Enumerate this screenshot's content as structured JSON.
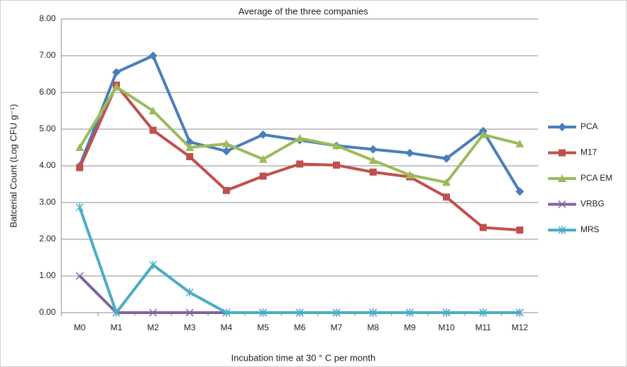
{
  "chart_data": {
    "type": "line",
    "title": "Average of the three companies",
    "x_label": "Incubation time at 30 ° C per month",
    "y_label": "Batcerial Count (Log CFU g⁻¹)",
    "categories": [
      "M0",
      "M1",
      "M2",
      "M3",
      "M4",
      "M5",
      "M6",
      "M7",
      "M8",
      "M9",
      "M10",
      "M11",
      "M12"
    ],
    "series": [
      {
        "name": "PCA",
        "color": "#4a7ebb",
        "marker": "diamond",
        "values": [
          4.0,
          6.55,
          7.0,
          4.65,
          4.4,
          4.85,
          4.7,
          4.55,
          4.45,
          4.35,
          4.2,
          4.95,
          3.3
        ]
      },
      {
        "name": "M17",
        "color": "#c0504d",
        "marker": "square",
        "values": [
          3.95,
          6.2,
          4.97,
          4.25,
          3.33,
          3.72,
          4.05,
          4.02,
          3.83,
          3.7,
          3.15,
          2.32,
          2.25
        ]
      },
      {
        "name": "PCA EM",
        "color": "#9bbb59",
        "marker": "triangle",
        "values": [
          4.5,
          6.15,
          5.5,
          4.5,
          4.6,
          4.18,
          4.75,
          4.55,
          4.15,
          3.75,
          3.55,
          4.85,
          4.6
        ]
      },
      {
        "name": "VRBG",
        "color": "#8064a2",
        "marker": "x",
        "values": [
          1.0,
          0,
          0,
          0,
          0,
          0,
          0,
          0,
          0,
          0,
          0,
          0,
          0
        ]
      },
      {
        "name": "MRS",
        "color": "#4bacc6",
        "marker": "star",
        "values": [
          2.87,
          0,
          1.3,
          0.55,
          0,
          0,
          0,
          0,
          0,
          0,
          0,
          0,
          0
        ]
      }
    ],
    "ylim": [
      0,
      8
    ],
    "yticks": [
      {
        "value": 0,
        "label": "0.00"
      },
      {
        "value": 1,
        "label": "1.00"
      },
      {
        "value": 2,
        "label": "2.00"
      },
      {
        "value": 3,
        "label": "3.00"
      },
      {
        "value": 4,
        "label": "4.00"
      },
      {
        "value": 5,
        "label": "5.00"
      },
      {
        "value": 6,
        "label": "6.00"
      },
      {
        "value": 7,
        "label": "7.00"
      },
      {
        "value": 8,
        "label": "8.00"
      }
    ],
    "grid": true,
    "legend": "right"
  }
}
